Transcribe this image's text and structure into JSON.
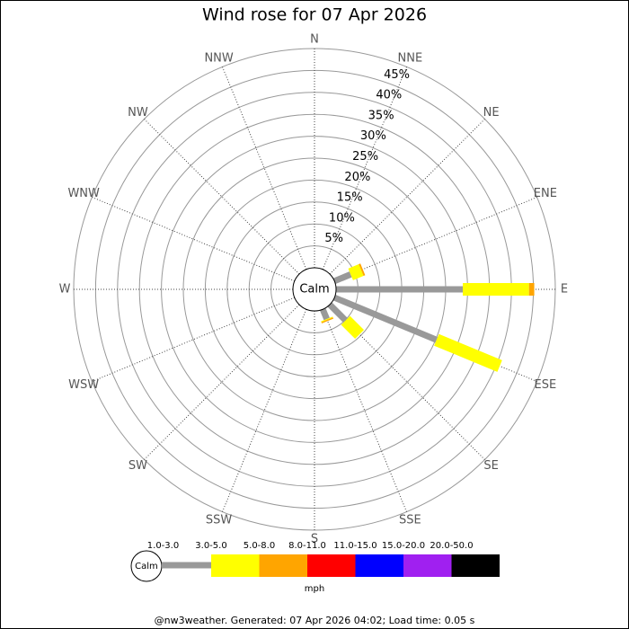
{
  "chart_data": {
    "type": "wind-rose",
    "title": "Wind rose for 07 Apr 2026",
    "directions": [
      "N",
      "NNE",
      "NE",
      "ENE",
      "E",
      "ESE",
      "SE",
      "SSE",
      "S",
      "SSW",
      "SW",
      "WSW",
      "W",
      "WNW",
      "NW",
      "NNW"
    ],
    "series": [
      {
        "name": "1.0-3.0",
        "color": "#999999",
        "values": [
          0,
          0,
          0,
          4.0,
          28.9,
          25.2,
          5.1,
          2.4,
          0,
          0,
          0,
          0,
          0,
          0,
          0,
          0
        ]
      },
      {
        "name": "3.0-5.0",
        "color": "#ffff00",
        "values": [
          0,
          0,
          0,
          2.6,
          15.1,
          15.6,
          4.5,
          0.2,
          0,
          0,
          0,
          0,
          0,
          0,
          0,
          0
        ]
      },
      {
        "name": "5.0-8.0",
        "color": "#ffa500",
        "values": [
          0,
          0,
          0,
          0.4,
          1.2,
          0,
          0,
          0.3,
          0,
          0,
          0,
          0,
          0,
          0,
          0,
          0
        ]
      },
      {
        "name": "8.0-11.0",
        "color": "#ff0000",
        "values": [
          0,
          0,
          0,
          0,
          0,
          0,
          0,
          0,
          0,
          0,
          0,
          0,
          0,
          0,
          0,
          0
        ]
      },
      {
        "name": "11.0-15.0",
        "color": "#0000ff",
        "values": [
          0,
          0,
          0,
          0,
          0,
          0,
          0,
          0,
          0,
          0,
          0,
          0,
          0,
          0,
          0,
          0
        ]
      },
      {
        "name": "15.0-20.0",
        "color": "#a020f0",
        "values": [
          0,
          0,
          0,
          0,
          0,
          0,
          0,
          0,
          0,
          0,
          0,
          0,
          0,
          0,
          0,
          0
        ]
      },
      {
        "name": "20.0-50.0",
        "color": "#000000",
        "values": [
          0,
          0,
          0,
          0,
          0,
          0,
          0,
          0,
          0,
          0,
          0,
          0,
          0,
          0,
          0,
          0
        ]
      }
    ],
    "ylim": [
      0,
      50
    ],
    "yticks": [
      {
        "value": 5,
        "label": "5%"
      },
      {
        "value": 10,
        "label": "10%"
      },
      {
        "value": 15,
        "label": "15%"
      },
      {
        "value": 20,
        "label": "20%"
      },
      {
        "value": 25,
        "label": "25%"
      },
      {
        "value": 30,
        "label": "30%"
      },
      {
        "value": 35,
        "label": "35%"
      },
      {
        "value": 40,
        "label": "40%"
      },
      {
        "value": 45,
        "label": "45%"
      }
    ],
    "calm_label": "Calm",
    "unit": "mph",
    "footer": "@nw3weather. Generated: 07 Apr 2026 04:02; Load time: 0.05 s"
  }
}
